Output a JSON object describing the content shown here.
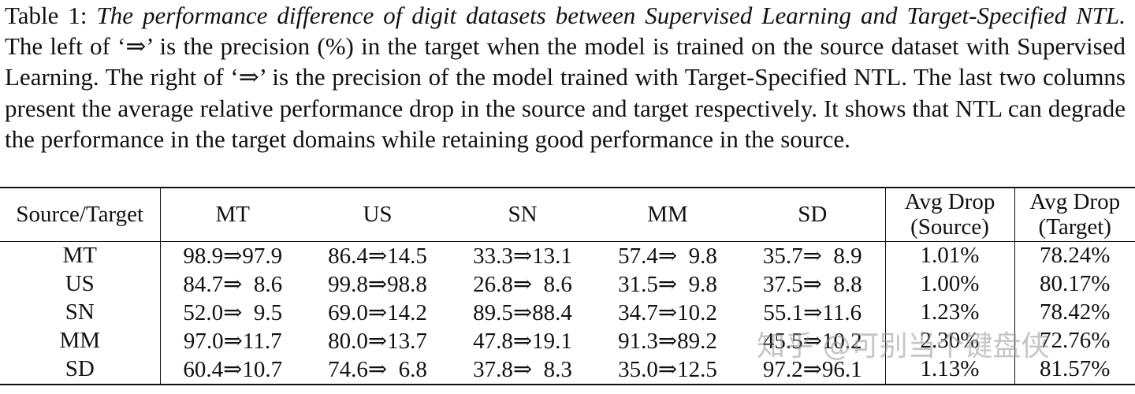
{
  "caption": {
    "label": "Table 1:",
    "title": "The performance difference of digit datasets between Supervised Learning and Target-Specified NTL.",
    "text": "The left of ‘⇒’ is the precision (%) in the target when the model is trained on the source dataset with Supervised Learning. The right of ‘⇒’ is the precision of the model trained with Target-Specified NTL. The last two columns present the average relative performance drop in the source and target respectively. It shows that NTL can degrade the performance in the target domains while retaining good performance in the source."
  },
  "table": {
    "header": [
      "Source/Target",
      "MT",
      "US",
      "SN",
      "MM",
      "SD",
      "Avg Drop\n(Source)",
      "Avg Drop\n(Target)"
    ],
    "rows": [
      [
        "MT",
        "98.9⇒97.9",
        "86.4⇒14.5",
        "33.3⇒13.1",
        "57.4⇒  9.8",
        "35.7⇒  8.9",
        "1.01%",
        "78.24%"
      ],
      [
        "US",
        "84.7⇒  8.6",
        "99.8⇒98.8",
        "26.8⇒  8.6",
        "31.5⇒  9.8",
        "37.5⇒  8.8",
        "1.00%",
        "80.17%"
      ],
      [
        "SN",
        "52.0⇒  9.5",
        "69.0⇒14.2",
        "89.5⇒88.4",
        "34.7⇒10.2",
        "55.1⇒11.6",
        "1.23%",
        "78.42%"
      ],
      [
        "MM",
        "97.0⇒11.7",
        "80.0⇒13.7",
        "47.8⇒19.1",
        "91.3⇒89.2",
        "45.5⇒10.2",
        "2.30%",
        "72.76%"
      ],
      [
        "SD",
        "60.4⇒10.7",
        "74.6⇒  6.8",
        "37.8⇒  8.3",
        "35.0⇒12.5",
        "97.2⇒96.1",
        "1.13%",
        "81.57%"
      ]
    ]
  },
  "watermark": "知乎 @可别当个键盘侠"
}
